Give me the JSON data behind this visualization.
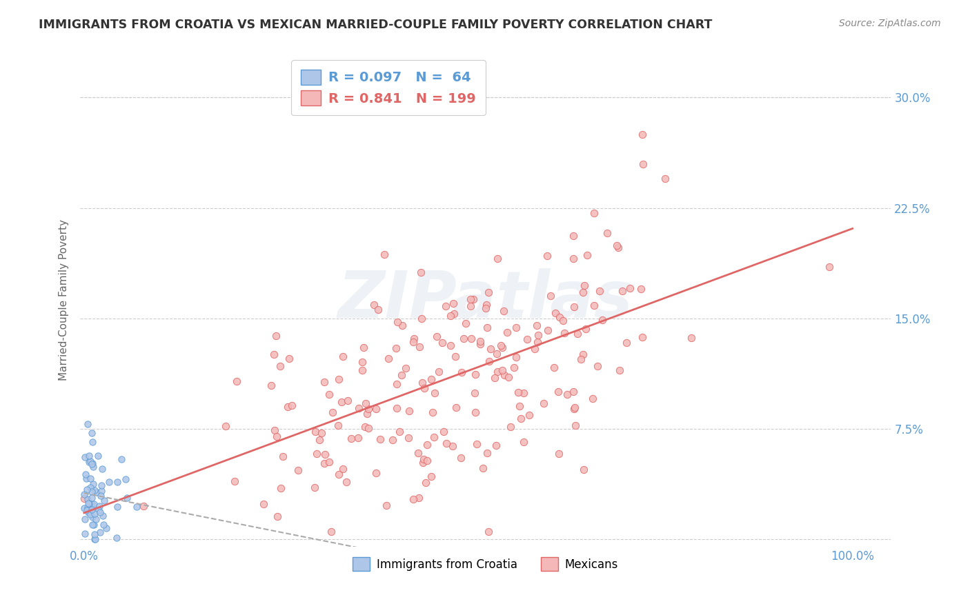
{
  "title": "IMMIGRANTS FROM CROATIA VS MEXICAN MARRIED-COUPLE FAMILY POVERTY CORRELATION CHART",
  "source": "Source: ZipAtlas.com",
  "ylabel": "Married-Couple Family Poverty",
  "croatia_color": "#aec6e8",
  "croatia_edge_color": "#5b9bd5",
  "mexico_color": "#f4b8b8",
  "mexico_edge_color": "#e06666",
  "croatia_trend_color": "#8ab4d9",
  "mexico_trend_color": "#e06666",
  "legend_croatia_label": "Immigrants from Croatia",
  "legend_mexico_label": "Mexicans",
  "R_croatia": 0.097,
  "N_croatia": 64,
  "R_mexico": 0.841,
  "N_mexico": 199,
  "watermark": "ZIPatlas",
  "background_color": "#ffffff",
  "grid_color": "#cccccc",
  "title_color": "#333333",
  "axis_label_color": "#666666",
  "tick_color": "#5b9bd5",
  "legend_text_color_blue": "#5b9bd5",
  "legend_text_color_pink": "#e06666",
  "ylim": [
    -0.005,
    0.33
  ],
  "xlim": [
    -0.005,
    1.05
  ],
  "yticks": [
    0.0,
    0.075,
    0.15,
    0.225,
    0.3
  ],
  "ytick_labels": [
    "",
    "7.5%",
    "15.0%",
    "22.5%",
    "30.0%"
  ],
  "xticks": [
    0.0,
    1.0
  ],
  "xtick_labels": [
    "0.0%",
    "100.0%"
  ]
}
